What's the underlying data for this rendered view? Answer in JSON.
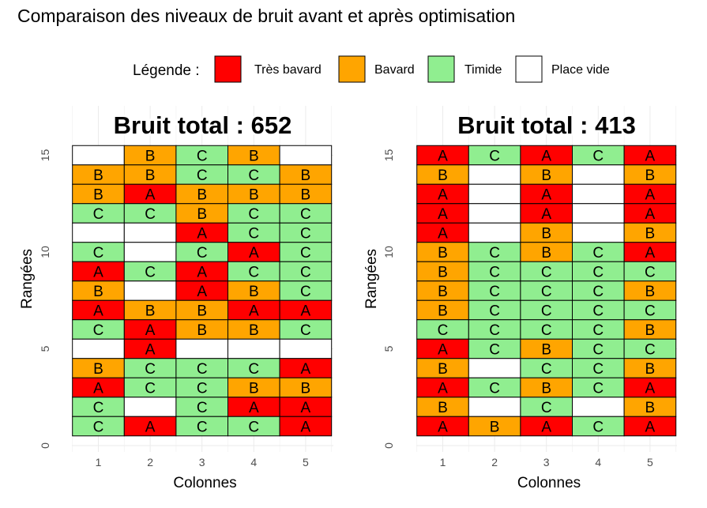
{
  "title": "Comparaison des niveaux de bruit avant et après optimisation",
  "legend": {
    "title": "Légende :",
    "items": [
      {
        "label": "Très bavard",
        "color": "#ff0000"
      },
      {
        "label": "Bavard",
        "color": "#ffa500"
      },
      {
        "label": "Timide",
        "color": "#90ee90"
      },
      {
        "label": "Place vide",
        "color": "#ffffff"
      }
    ]
  },
  "colors": {
    "A": "#ff0000",
    "B": "#ffa500",
    "C": "#90ee90",
    "": "#ffffff"
  },
  "chart_data": [
    {
      "type": "heatmap",
      "title": "Bruit total : 652",
      "xlabel": "Colonnes",
      "ylabel": "Rangées",
      "x_ticks": [
        "1",
        "2",
        "3",
        "4",
        "5"
      ],
      "y_ticks": [
        "0",
        "5",
        "10",
        "15"
      ],
      "xlim": [
        0.5,
        5.5
      ],
      "ylim": [
        0,
        15.5
      ],
      "rows_top_to_bottom": [
        15,
        14,
        13,
        12,
        11,
        10,
        9,
        8,
        7,
        6,
        5,
        4,
        3,
        2,
        1
      ],
      "grid": [
        [
          "",
          "B",
          "C",
          "B",
          ""
        ],
        [
          "B",
          "B",
          "C",
          "C",
          "B"
        ],
        [
          "B",
          "A",
          "B",
          "B",
          "B"
        ],
        [
          "C",
          "C",
          "B",
          "C",
          "C"
        ],
        [
          "",
          "",
          "A",
          "C",
          "C"
        ],
        [
          "C",
          "",
          "C",
          "A",
          "C"
        ],
        [
          "A",
          "C",
          "A",
          "C",
          "C"
        ],
        [
          "B",
          "",
          "A",
          "B",
          "C"
        ],
        [
          "A",
          "B",
          "B",
          "A",
          "A"
        ],
        [
          "C",
          "A",
          "B",
          "B",
          "C"
        ],
        [
          "",
          "A",
          "",
          "",
          ""
        ],
        [
          "B",
          "C",
          "C",
          "C",
          "A"
        ],
        [
          "A",
          "C",
          "C",
          "B",
          "B"
        ],
        [
          "C",
          "",
          "C",
          "A",
          "A"
        ],
        [
          "C",
          "A",
          "C",
          "C",
          "A"
        ]
      ]
    },
    {
      "type": "heatmap",
      "title": "Bruit total : 413",
      "xlabel": "Colonnes",
      "ylabel": "Rangées",
      "x_ticks": [
        "1",
        "2",
        "3",
        "4",
        "5"
      ],
      "y_ticks": [
        "0",
        "5",
        "10",
        "15"
      ],
      "xlim": [
        0.5,
        5.5
      ],
      "ylim": [
        0,
        15.5
      ],
      "rows_top_to_bottom": [
        15,
        14,
        13,
        12,
        11,
        10,
        9,
        8,
        7,
        6,
        5,
        4,
        3,
        2,
        1
      ],
      "grid": [
        [
          "A",
          "C",
          "A",
          "C",
          "A"
        ],
        [
          "B",
          "",
          "B",
          "",
          "B"
        ],
        [
          "A",
          "",
          "A",
          "",
          "A"
        ],
        [
          "A",
          "",
          "A",
          "",
          "A"
        ],
        [
          "A",
          "",
          "B",
          "",
          "B"
        ],
        [
          "B",
          "C",
          "B",
          "C",
          "A"
        ],
        [
          "B",
          "C",
          "C",
          "C",
          "C"
        ],
        [
          "B",
          "C",
          "C",
          "C",
          "B"
        ],
        [
          "B",
          "C",
          "C",
          "C",
          "C"
        ],
        [
          "C",
          "C",
          "C",
          "C",
          "B"
        ],
        [
          "A",
          "C",
          "B",
          "C",
          "C"
        ],
        [
          "B",
          "",
          "C",
          "C",
          "B"
        ],
        [
          "A",
          "C",
          "B",
          "C",
          "A"
        ],
        [
          "B",
          "",
          "C",
          "",
          "B"
        ],
        [
          "A",
          "B",
          "A",
          "C",
          "A"
        ]
      ]
    }
  ]
}
